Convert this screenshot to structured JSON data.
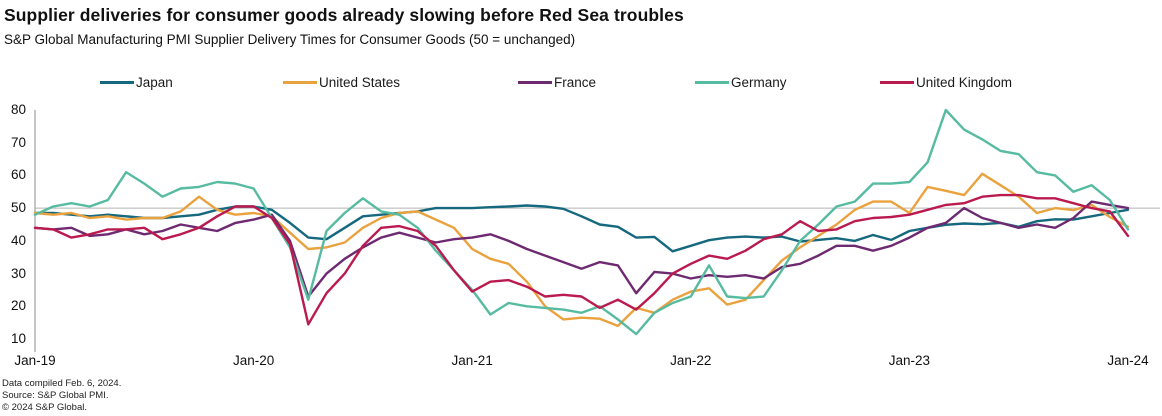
{
  "header": {
    "title": "Supplier deliveries for consumer goods already slowing before Red Sea troubles",
    "subtitle": "S&P Global Manufacturing PMI Supplier Delivery Times for Consumer Goods (50 = unchanged)"
  },
  "legend": [
    {
      "label": "Japan",
      "color": "#15687e"
    },
    {
      "label": "United States",
      "color": "#eaa23e"
    },
    {
      "label": "France",
      "color": "#6e2a71"
    },
    {
      "label": "Germany",
      "color": "#56bba0"
    },
    {
      "label": "United Kingdom",
      "color": "#ba1a4e"
    }
  ],
  "chart_data": {
    "type": "line",
    "title": "Supplier deliveries for consumer goods already slowing before Red Sea troubles",
    "subtitle": "S&P Global Manufacturing PMI Supplier Delivery Times for Consumer Goods (50 = unchanged)",
    "x_axis": {
      "label": "",
      "tick_labels": [
        "Jan-19",
        "Jan-20",
        "Jan-21",
        "Jan-22",
        "Jan-23",
        "Jan-24"
      ],
      "months_per_tick": 12
    },
    "y_axis": {
      "label": "",
      "ticks": [
        80,
        70,
        60,
        50,
        40,
        30,
        20,
        10
      ],
      "range": [
        10,
        80
      ]
    },
    "reference_line": 50,
    "grid": "only 50-line shown",
    "legend_position": "top",
    "series": [
      {
        "name": "Japan",
        "color": "#15687e",
        "values": [
          48.5,
          48.5,
          48,
          47.5,
          48,
          47.5,
          47,
          47,
          47.5,
          48,
          49.5,
          50.5,
          50.5,
          49.5,
          45.5,
          41,
          40.5,
          44,
          47.5,
          48,
          48.5,
          49,
          50,
          50,
          50,
          50.3,
          50.5,
          50.8,
          50.5,
          49.8,
          47.5,
          45,
          44.3,
          41,
          41.2,
          36.8,
          38.5,
          40.2,
          41,
          41.3,
          41,
          41.3,
          39.8,
          40.3,
          40.8,
          40,
          41.8,
          40.3,
          43,
          44,
          44.9,
          45.3,
          45.1,
          45.5,
          44.3,
          46,
          46.6,
          46.5,
          47.5,
          48.5,
          49.5
        ]
      },
      {
        "name": "United States",
        "color": "#eaa23e",
        "values": [
          48.5,
          48,
          48.5,
          47,
          47.5,
          46.5,
          47,
          47,
          49,
          53.5,
          49.5,
          48,
          48.5,
          47.5,
          42.5,
          37.5,
          38,
          39.5,
          44,
          47,
          48.5,
          49,
          46.5,
          44,
          37.5,
          34.5,
          33,
          27.5,
          20,
          16,
          16.5,
          16.2,
          14,
          19.5,
          18,
          22,
          24.5,
          25.5,
          20.5,
          22,
          28,
          34,
          38,
          41.5,
          45,
          49.5,
          52,
          52,
          48.5,
          56.5,
          55.3,
          54,
          60.5,
          57,
          53.5,
          48.5,
          50,
          49.4,
          51,
          47.3,
          44.3
        ]
      },
      {
        "name": "France",
        "color": "#6e2a71",
        "values": [
          44,
          43.5,
          44,
          41.5,
          42,
          43.5,
          42,
          43,
          45,
          44,
          43,
          45.5,
          46.5,
          48,
          40,
          23,
          30,
          34.5,
          38,
          41,
          42.5,
          41,
          39.5,
          40.5,
          41,
          42,
          40,
          37.5,
          35.5,
          33.5,
          31.5,
          33.5,
          32.5,
          24,
          30.5,
          30,
          28.5,
          29.5,
          29,
          29.5,
          28.5,
          32,
          33,
          35.5,
          38.5,
          38.5,
          37,
          38.5,
          41,
          44,
          45.5,
          50,
          47,
          45.5,
          44,
          45,
          44,
          47,
          52,
          51,
          50
        ]
      },
      {
        "name": "Germany",
        "color": "#56bba0",
        "values": [
          48,
          50.5,
          51.5,
          50.5,
          52.5,
          61,
          57.5,
          53.5,
          56,
          56.5,
          58,
          57.5,
          56,
          47,
          38,
          22,
          43,
          48.5,
          53,
          49,
          48,
          44,
          37,
          31,
          25,
          17.5,
          21,
          20,
          19.5,
          19,
          18,
          20,
          16,
          11.5,
          18,
          21,
          23,
          32.5,
          23,
          22.5,
          23,
          31,
          40,
          45,
          50.5,
          52,
          57.5,
          57.5,
          58,
          64,
          80,
          74,
          71,
          67.5,
          66.5,
          61,
          60,
          55,
          57,
          52.5,
          43.5
        ]
      },
      {
        "name": "United Kingdom",
        "color": "#ba1a4e",
        "values": [
          44,
          43.5,
          41,
          42,
          43.5,
          43.5,
          44,
          40.5,
          42,
          44,
          47.5,
          50.5,
          50.5,
          47,
          39,
          14.5,
          24,
          30,
          38.5,
          44,
          44.5,
          43,
          38.5,
          31,
          24.5,
          27.5,
          28,
          26,
          23,
          23.5,
          23,
          19.5,
          22,
          19,
          24,
          30,
          33,
          35.5,
          34.5,
          37,
          40.5,
          42,
          46,
          43,
          43.5,
          46,
          47,
          47.3,
          48,
          49.5,
          51,
          51.5,
          53.5,
          54,
          54,
          53,
          53,
          51.5,
          50,
          49,
          41.5
        ]
      }
    ],
    "x_start_label": "Jan-19",
    "x_end_label": "Jan-24"
  },
  "footer": {
    "line1": "Data compiled Feb. 6, 2024.",
    "line2": "Source: S&P Global PMI.",
    "line3": "© 2024 S&P Global."
  }
}
